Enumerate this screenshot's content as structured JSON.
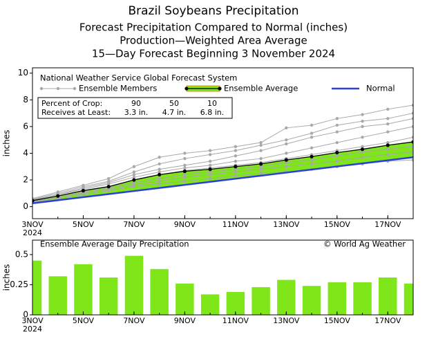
{
  "chart_data": [
    {
      "type": "line",
      "title": "Brazil Soybeans Precipitation",
      "subtitle": [
        "Forecast Precipitation Compared to Normal (inches)",
        "Production—Weighted Area Average",
        "15—Day Forecast Beginning 3 November 2024"
      ],
      "legend_title": "National Weather Service Global Forecast System",
      "legend": "upper left",
      "crop_table": {
        "rows": [
          [
            "Percent of Crop:",
            "90",
            "50",
            "10"
          ],
          [
            "Receives at Least:",
            "3.3 in.",
            "4.7 in.",
            "6.8 in."
          ]
        ]
      },
      "ylabel": "inches",
      "x": [
        3,
        4,
        5,
        6,
        7,
        8,
        9,
        10,
        11,
        12,
        13,
        14,
        15,
        16,
        17,
        18
      ],
      "xlim": [
        3,
        18
      ],
      "xticks": [
        {
          "value": 3,
          "label": "3NOV"
        },
        {
          "value": 5,
          "label": "5NOV"
        },
        {
          "value": 7,
          "label": "7NOV"
        },
        {
          "value": 9,
          "label": "9NOV"
        },
        {
          "value": 11,
          "label": "11NOV"
        },
        {
          "value": 13,
          "label": "13NOV"
        },
        {
          "value": 15,
          "label": "15NOV"
        },
        {
          "value": 17,
          "label": "17NOV"
        }
      ],
      "year_label": "2024",
      "ylim": [
        -0.9,
        10.4
      ],
      "yticks": [
        0,
        2,
        4,
        6,
        8,
        10
      ],
      "series": [
        {
          "name": "Ensemble Members",
          "color": "#a8a8a8",
          "members": [
            [
              0.6,
              1.1,
              1.6,
              2.1,
              3.0,
              3.7,
              4.0,
              4.2,
              4.5,
              4.8,
              5.9,
              6.1,
              6.6,
              6.9,
              7.3,
              7.6
            ],
            [
              0.55,
              1.0,
              1.5,
              1.9,
              2.6,
              3.2,
              3.6,
              3.9,
              4.2,
              4.6,
              5.0,
              5.5,
              6.1,
              6.4,
              6.6,
              7.0
            ],
            [
              0.5,
              0.9,
              1.4,
              1.8,
              2.4,
              2.8,
              3.1,
              3.4,
              3.8,
              4.2,
              4.7,
              5.2,
              5.6,
              6.0,
              6.2,
              6.6
            ],
            [
              0.5,
              0.9,
              1.3,
              1.7,
              2.2,
              2.6,
              2.9,
              3.1,
              3.4,
              3.6,
              4.0,
              4.4,
              4.8,
              5.2,
              5.6,
              6.0
            ],
            [
              0.45,
              0.8,
              1.2,
              1.5,
              2.0,
              2.4,
              2.7,
              2.9,
              3.1,
              3.3,
              3.6,
              3.9,
              4.2,
              4.5,
              4.8,
              5.2
            ],
            [
              0.4,
              0.7,
              1.1,
              1.4,
              1.8,
              2.1,
              2.4,
              2.6,
              2.8,
              3.0,
              3.3,
              3.5,
              3.8,
              4.1,
              4.3,
              4.5
            ],
            [
              0.4,
              0.7,
              1.0,
              1.3,
              1.6,
              1.9,
              2.2,
              2.4,
              2.6,
              2.8,
              3.0,
              3.2,
              3.4,
              3.7,
              3.9,
              4.1
            ],
            [
              0.35,
              0.6,
              0.9,
              1.2,
              1.5,
              1.7,
              1.9,
              2.1,
              2.3,
              2.5,
              2.6,
              2.8,
              3.0,
              3.2,
              3.4,
              3.5
            ]
          ]
        },
        {
          "name": "Ensemble Average",
          "color": "#000000",
          "fill": "#7fe619",
          "edge": "#f08a30",
          "values": [
            0.45,
            0.8,
            1.2,
            1.5,
            2.0,
            2.4,
            2.65,
            2.8,
            3.0,
            3.2,
            3.5,
            3.75,
            4.05,
            4.3,
            4.6,
            4.85
          ]
        },
        {
          "name": "Normal",
          "color": "#2a3fd8",
          "values": [
            0.25,
            0.48,
            0.71,
            0.94,
            1.17,
            1.4,
            1.63,
            1.86,
            2.09,
            2.32,
            2.55,
            2.78,
            3.01,
            3.24,
            3.47,
            3.7
          ]
        }
      ]
    },
    {
      "type": "bar",
      "title": "Ensemble Average Daily Precipitation",
      "annotation": "© World Ag Weather",
      "ylabel": "inches",
      "x": [
        3,
        4,
        5,
        6,
        7,
        8,
        9,
        10,
        11,
        12,
        13,
        14,
        15,
        16,
        17,
        18
      ],
      "xlim": [
        3,
        18
      ],
      "xticks": [
        {
          "value": 3,
          "label": "3NOV"
        },
        {
          "value": 5,
          "label": "5NOV"
        },
        {
          "value": 7,
          "label": "7NOV"
        },
        {
          "value": 9,
          "label": "9NOV"
        },
        {
          "value": 11,
          "label": "11NOV"
        },
        {
          "value": 13,
          "label": "13NOV"
        },
        {
          "value": 15,
          "label": "15NOV"
        },
        {
          "value": 17,
          "label": "17NOV"
        }
      ],
      "year_label": "2024",
      "ylim": [
        0,
        0.62
      ],
      "yticks": [
        0,
        0.25,
        0.5
      ],
      "color": "#7fe619",
      "values": [
        0.45,
        0.32,
        0.42,
        0.31,
        0.49,
        0.38,
        0.26,
        0.17,
        0.19,
        0.23,
        0.29,
        0.24,
        0.27,
        0.27,
        0.31,
        0.26
      ]
    }
  ]
}
